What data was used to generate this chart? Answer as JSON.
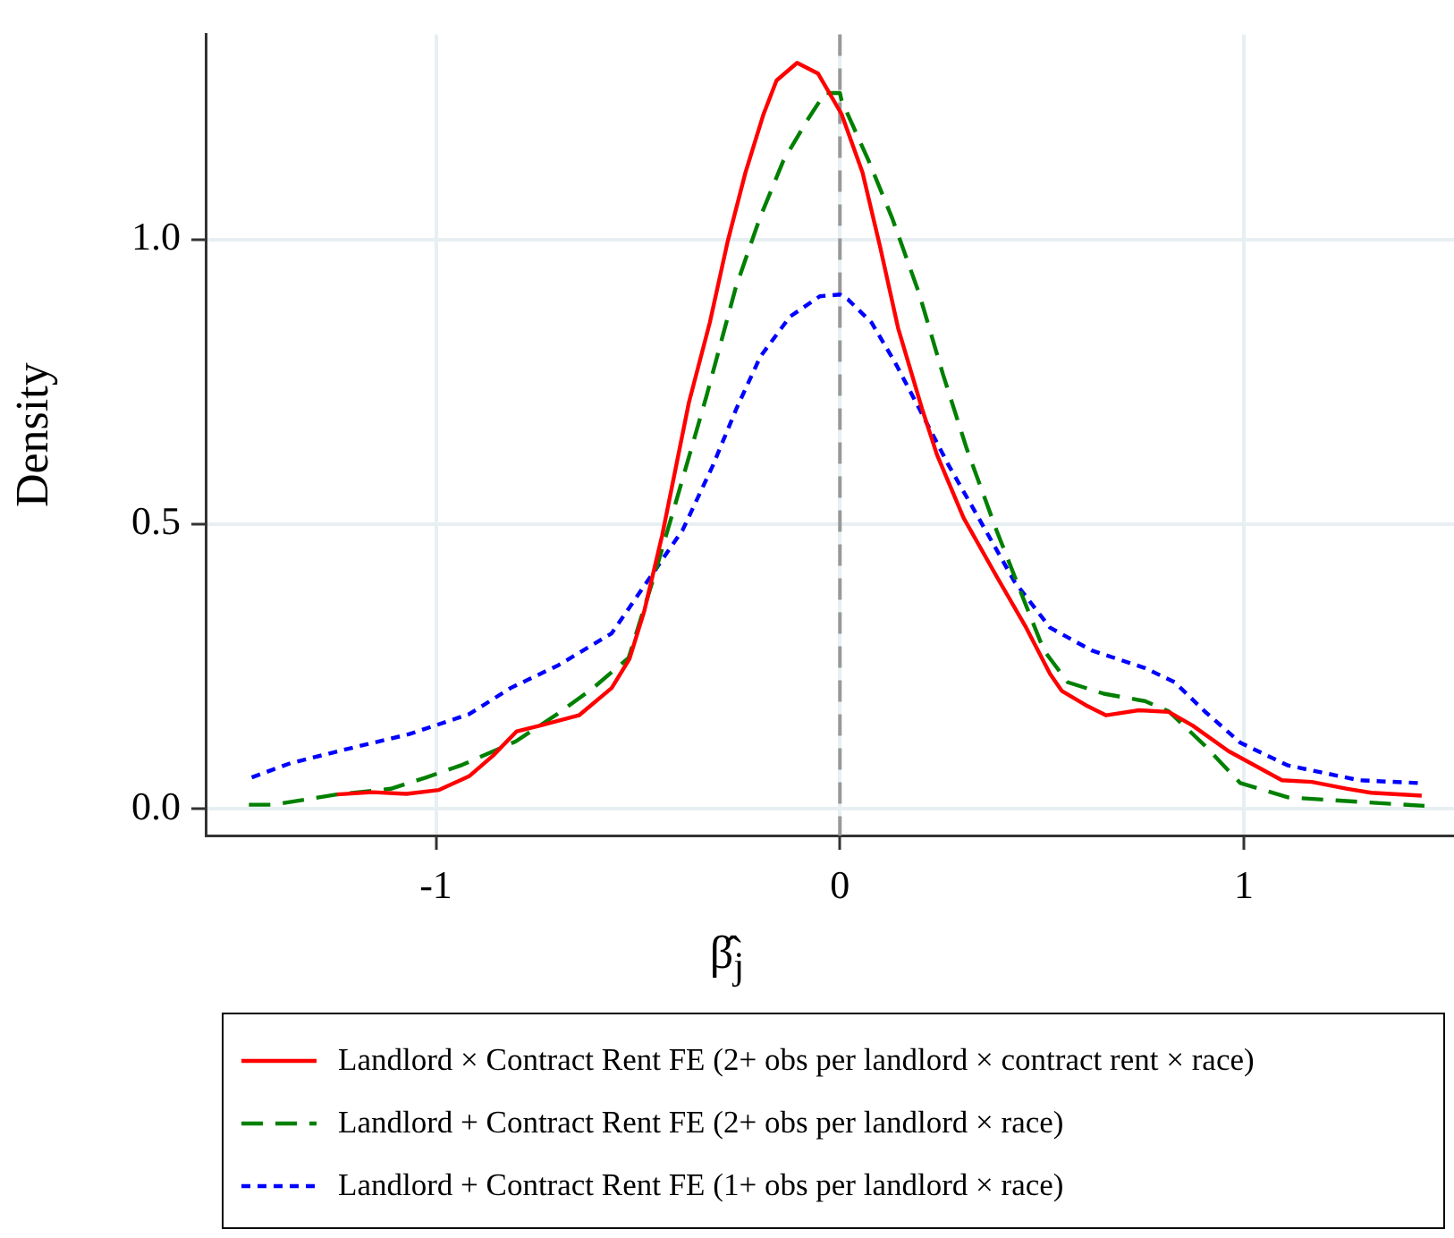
{
  "chart_data": {
    "type": "line",
    "xlabel": "β̂$_{j}$",
    "ylabel": "Density",
    "xlim": [
      -1.57,
      1.52
    ],
    "ylim": [
      -0.047,
      1.36
    ],
    "xticks": [
      -1,
      0,
      1
    ],
    "yticks": [
      {
        "value": 0,
        "label": "0.0"
      },
      {
        "value": 0.5,
        "label": "0.5"
      },
      {
        "value": 1,
        "label": "1.0"
      }
    ],
    "grid": true,
    "legend": "bottom",
    "marker": "none",
    "ref_lines": [
      {
        "axis": "x",
        "value": 0,
        "color": "#999999",
        "line_style": "dashed"
      }
    ],
    "series": [
      {
        "name": "Landlord × Contract Rent FE (2+ obs per landlord × contract rent × race)",
        "color": "#ff0000",
        "line_style": "solid",
        "x": [
          -1.245,
          -1.157,
          -1.073,
          -0.992,
          -0.918,
          -0.859,
          -0.8,
          -0.742,
          -0.646,
          -0.565,
          -0.521,
          -0.484,
          -0.44,
          -0.374,
          -0.322,
          -0.278,
          -0.234,
          -0.19,
          -0.157,
          -0.106,
          -0.054,
          0.004,
          0.056,
          0.1,
          0.144,
          0.203,
          0.24,
          0.306,
          0.387,
          0.461,
          0.52,
          0.549,
          0.608,
          0.659,
          0.741,
          0.814,
          0.873,
          0.962,
          1.094,
          1.168,
          1.256,
          1.315,
          1.44
        ],
        "values": [
          0.025,
          0.029,
          0.026,
          0.033,
          0.057,
          0.093,
          0.136,
          0.146,
          0.164,
          0.212,
          0.263,
          0.348,
          0.48,
          0.713,
          0.854,
          0.996,
          1.117,
          1.218,
          1.279,
          1.31,
          1.291,
          1.22,
          1.117,
          0.985,
          0.844,
          0.703,
          0.622,
          0.511,
          0.409,
          0.318,
          0.237,
          0.207,
          0.182,
          0.164,
          0.173,
          0.17,
          0.146,
          0.101,
          0.05,
          0.047,
          0.035,
          0.028,
          0.023
        ]
      },
      {
        "name": "Landlord + Contract Rent FE (2+ obs per landlord × race)",
        "color": "#008000",
        "line_style": "dashed",
        "x": [
          -1.463,
          -1.404,
          -1.245,
          -1.112,
          -1.024,
          -0.935,
          -0.803,
          -0.7,
          -0.611,
          -0.523,
          -0.464,
          -0.405,
          -0.331,
          -0.258,
          -0.199,
          -0.14,
          -0.081,
          -0.037,
          0,
          0.004,
          0.071,
          0.13,
          0.196,
          0.255,
          0.314,
          0.387,
          0.454,
          0.505,
          0.564,
          0.653,
          0.755,
          0.814,
          0.903,
          0.991,
          1.109,
          1.285,
          1.447
        ],
        "values": [
          0.007,
          0.007,
          0.025,
          0.035,
          0.055,
          0.077,
          0.118,
          0.166,
          0.212,
          0.265,
          0.399,
          0.541,
          0.723,
          0.915,
          1.036,
          1.138,
          1.209,
          1.257,
          1.257,
          1.244,
          1.138,
          1.036,
          0.905,
          0.763,
          0.632,
          0.49,
          0.369,
          0.278,
          0.222,
          0.202,
          0.189,
          0.171,
          0.111,
          0.045,
          0.02,
          0.012,
          0.005
        ]
      },
      {
        "name": "Landlord + Contract Rent FE (1+ obs per landlord × race)",
        "color": "#0000ff",
        "line_style": "dotted",
        "x": [
          -1.456,
          -1.36,
          -1.213,
          -1.066,
          -0.918,
          -0.815,
          -0.697,
          -0.565,
          -0.477,
          -0.389,
          -0.315,
          -0.256,
          -0.197,
          -0.124,
          -0.05,
          0,
          0.019,
          0.078,
          0.137,
          0.196,
          0.27,
          0.343,
          0.432,
          0.52,
          0.623,
          0.755,
          0.829,
          0.903,
          0.991,
          1.109,
          1.285,
          1.432
        ],
        "values": [
          0.055,
          0.08,
          0.106,
          0.131,
          0.166,
          0.212,
          0.252,
          0.308,
          0.399,
          0.49,
          0.602,
          0.703,
          0.794,
          0.864,
          0.9,
          0.903,
          0.895,
          0.854,
          0.783,
          0.703,
          0.602,
          0.511,
          0.399,
          0.318,
          0.278,
          0.247,
          0.222,
          0.171,
          0.116,
          0.076,
          0.05,
          0.045
        ]
      }
    ]
  }
}
